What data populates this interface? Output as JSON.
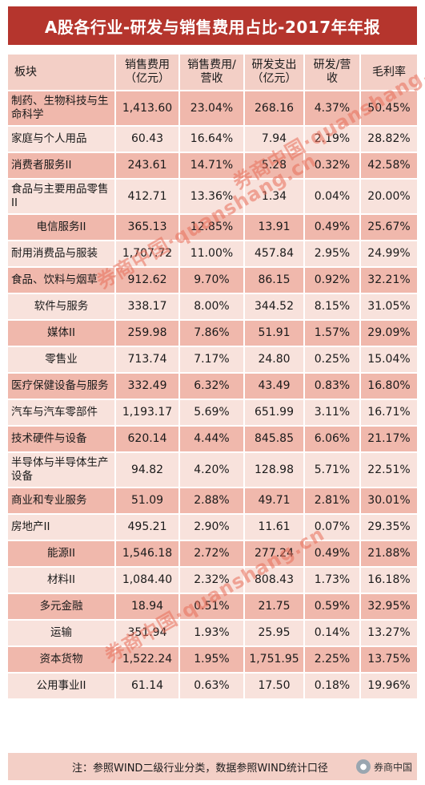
{
  "title": "A股各行业-研发与销售费用占比-2017年年报",
  "columns": [
    "板块",
    "销售费用（亿元）",
    "销售费用/营收",
    "研发支出（亿元）",
    "研发/营收",
    "毛利率"
  ],
  "rows": [
    [
      "制药、生物科技与生命科学",
      "1,413.60",
      "23.04%",
      "268.16",
      "4.37%",
      "50.45%"
    ],
    [
      "家庭与个人用品",
      "60.43",
      "16.64%",
      "7.94",
      "2.19%",
      "28.82%"
    ],
    [
      "消费者服务II",
      "243.61",
      "14.71%",
      "5.28",
      "0.32%",
      "42.58%"
    ],
    [
      "食品与主要用品零售II",
      "412.71",
      "13.36%",
      "1.34",
      "0.04%",
      "20.00%"
    ],
    [
      "电信服务II",
      "365.13",
      "12.85%",
      "13.91",
      "0.49%",
      "25.67%"
    ],
    [
      "耐用消费品与服装",
      "1,707.72",
      "11.00%",
      "457.84",
      "2.95%",
      "24.99%"
    ],
    [
      "食品、饮料与烟草",
      "912.62",
      "9.70%",
      "86.15",
      "0.92%",
      "32.21%"
    ],
    [
      "软件与服务",
      "338.17",
      "8.00%",
      "344.52",
      "8.15%",
      "31.05%"
    ],
    [
      "媒体II",
      "259.98",
      "7.86%",
      "51.91",
      "1.57%",
      "29.09%"
    ],
    [
      "零售业",
      "713.74",
      "7.17%",
      "24.80",
      "0.25%",
      "15.04%"
    ],
    [
      "医疗保健设备与服务",
      "332.49",
      "6.32%",
      "43.49",
      "0.83%",
      "16.80%"
    ],
    [
      "汽车与汽车零部件",
      "1,193.17",
      "5.69%",
      "651.99",
      "3.11%",
      "16.71%"
    ],
    [
      "技术硬件与设备",
      "620.14",
      "4.44%",
      "845.85",
      "6.06%",
      "21.17%"
    ],
    [
      "半导体与半导体生产设备",
      "94.82",
      "4.20%",
      "128.98",
      "5.71%",
      "22.51%"
    ],
    [
      "商业和专业服务",
      "51.09",
      "2.88%",
      "49.71",
      "2.81%",
      "30.01%"
    ],
    [
      "房地产II",
      "495.21",
      "2.90%",
      "11.61",
      "0.07%",
      "29.35%"
    ],
    [
      "能源II",
      "1,546.18",
      "2.72%",
      "277.24",
      "0.49%",
      "21.88%"
    ],
    [
      "材料II",
      "1,084.40",
      "2.32%",
      "808.43",
      "1.73%",
      "16.18%"
    ],
    [
      "多元金融",
      "18.94",
      "0.51%",
      "21.75",
      "0.59%",
      "32.95%"
    ],
    [
      "运输",
      "351.94",
      "1.93%",
      "25.95",
      "0.14%",
      "13.27%"
    ],
    [
      "资本货物",
      "1,522.24",
      "1.95%",
      "1,751.95",
      "2.25%",
      "13.75%"
    ],
    [
      "公用事业II",
      "61.14",
      "0.63%",
      "17.50",
      "0.18%",
      "19.96%"
    ]
  ],
  "footer_note": "注：参照WIND二级行业分类，数据参照WIND统计口径",
  "logo_text": "券商中国",
  "watermark_text": "券商中国·quanshang.cn",
  "colors": {
    "title_bg": "#b5352d",
    "header_bg": "#f3cfc6",
    "row_dark": "#f0b8ac",
    "row_light": "#f8e2dc"
  }
}
